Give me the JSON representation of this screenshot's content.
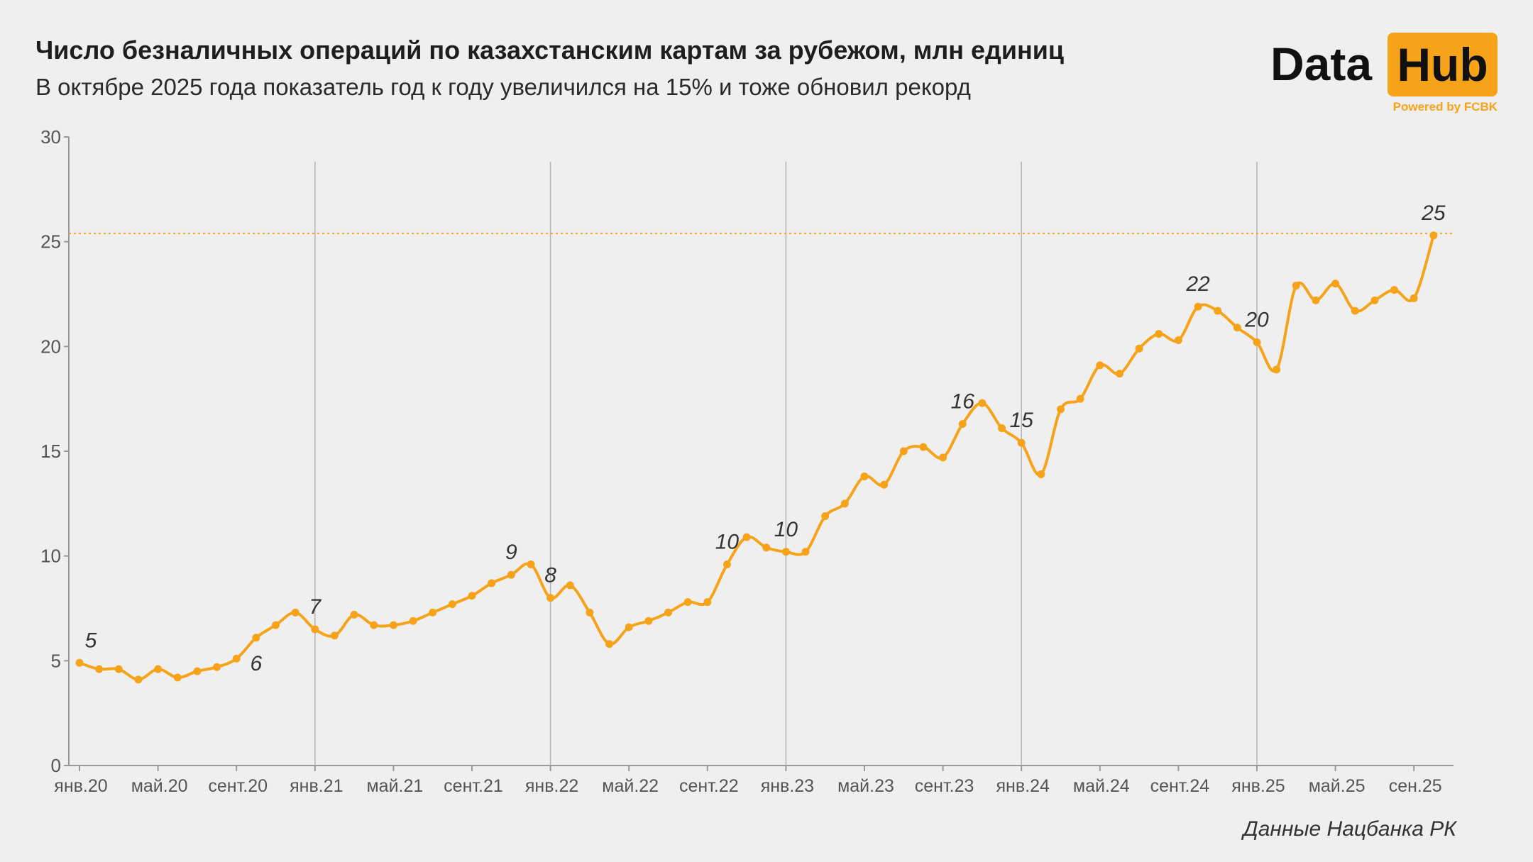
{
  "header": {
    "title": "Число безналичных операций по казахстанским картам за рубежом, млн единиц",
    "subtitle": "В октябре 2025 года показатель год к году увеличился на 15% и тоже обновил рекорд"
  },
  "logo": {
    "data_text": "Data",
    "hub_text": "Hub",
    "powered_text": "Powered by FCBK"
  },
  "source_text": "Данные Нацбанка РК",
  "colors": {
    "line": "#f7a31a",
    "background": "#efefef",
    "logo_accent": "#f7a31a"
  },
  "chart_data": {
    "type": "line",
    "title": "Число безналичных операций по казахстанским картам за рубежом, млн единиц",
    "ylim": [
      0,
      30
    ],
    "yticks": [
      0,
      5,
      10,
      15,
      20,
      25,
      30
    ],
    "xtick_labels": [
      {
        "index": 0,
        "label": "янв.20"
      },
      {
        "index": 4,
        "label": "май.20"
      },
      {
        "index": 8,
        "label": "сент.20"
      },
      {
        "index": 12,
        "label": "янв.21"
      },
      {
        "index": 16,
        "label": "май.21"
      },
      {
        "index": 20,
        "label": "сент.21"
      },
      {
        "index": 24,
        "label": "янв.22"
      },
      {
        "index": 28,
        "label": "май.22"
      },
      {
        "index": 32,
        "label": "сент.22"
      },
      {
        "index": 36,
        "label": "янв.23"
      },
      {
        "index": 40,
        "label": "май.23"
      },
      {
        "index": 44,
        "label": "сент.23"
      },
      {
        "index": 48,
        "label": "янв.24"
      },
      {
        "index": 52,
        "label": "май.24"
      },
      {
        "index": 56,
        "label": "сент.24"
      },
      {
        "index": 60,
        "label": "янв.25"
      },
      {
        "index": 64,
        "label": "май.25"
      },
      {
        "index": 68,
        "label": "сен.25"
      }
    ],
    "year_gridlines_at_index": [
      12,
      24,
      36,
      48,
      60
    ],
    "series": [
      {
        "values": [
          4.9,
          4.6,
          4.6,
          4.1,
          4.6,
          4.2,
          4.5,
          4.7,
          5.1,
          6.1,
          6.7,
          7.3,
          6.5,
          6.2,
          7.2,
          6.7,
          6.7,
          6.9,
          7.3,
          7.7,
          8.1,
          8.7,
          9.1,
          9.6,
          8.0,
          8.6,
          7.3,
          5.8,
          6.6,
          6.9,
          7.3,
          7.8,
          7.8,
          9.6,
          10.9,
          10.4,
          10.2,
          10.2,
          11.9,
          12.5,
          13.8,
          13.4,
          15.0,
          15.2,
          14.7,
          16.3,
          17.3,
          16.1,
          15.4,
          13.9,
          17.0,
          17.5,
          19.1,
          18.7,
          19.9,
          20.6,
          20.3,
          21.9,
          21.7,
          20.9,
          20.2,
          18.9,
          22.9,
          22.2,
          23.0,
          21.7,
          22.2,
          22.7,
          22.3,
          25.3
        ]
      }
    ],
    "reference_line": {
      "y": 25.4,
      "style": "dotted"
    },
    "annotations": [
      {
        "index": 0,
        "text": "5",
        "position": "above"
      },
      {
        "index": 9,
        "text": "6",
        "position": "below"
      },
      {
        "index": 12,
        "text": "7",
        "position": "above"
      },
      {
        "index": 22,
        "text": "9",
        "position": "above"
      },
      {
        "index": 24,
        "text": "8",
        "position": "above"
      },
      {
        "index": 33,
        "text": "10",
        "position": "above"
      },
      {
        "index": 36,
        "text": "10",
        "position": "above"
      },
      {
        "index": 45,
        "text": "16",
        "position": "above"
      },
      {
        "index": 48,
        "text": "15",
        "position": "above"
      },
      {
        "index": 57,
        "text": "22",
        "position": "above"
      },
      {
        "index": 60,
        "text": "20",
        "position": "above"
      },
      {
        "index": 69,
        "text": "25",
        "position": "above"
      }
    ]
  }
}
